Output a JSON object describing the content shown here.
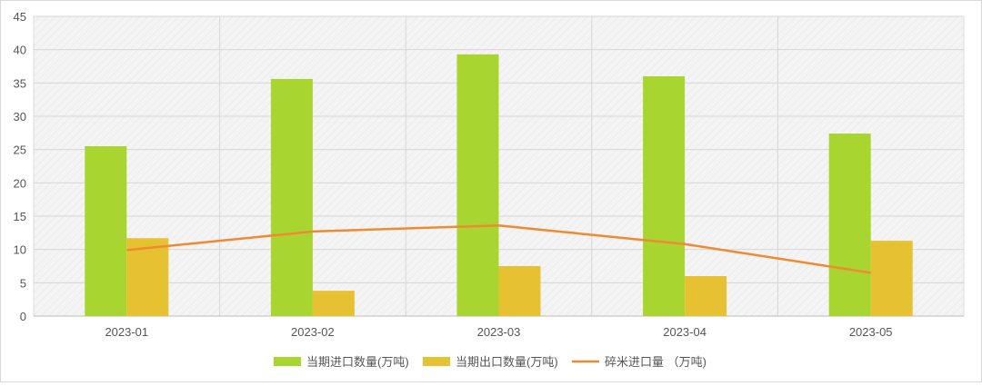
{
  "chart_data": {
    "type": "bar",
    "categories": [
      "2023-01",
      "2023-02",
      "2023-03",
      "2023-04",
      "2023-05"
    ],
    "series": [
      {
        "name": "当期进口数量(万吨)",
        "type": "bar",
        "color": "#a8d52f",
        "values": [
          25.5,
          35.6,
          39.3,
          36.0,
          27.4
        ]
      },
      {
        "name": "当期出口数量(万吨)",
        "type": "bar",
        "color": "#e6c232",
        "values": [
          11.7,
          3.8,
          7.5,
          6.0,
          11.3
        ]
      },
      {
        "name": "碎米进口量 （万吨)",
        "type": "line",
        "color": "#f08a30",
        "values": [
          9.9,
          12.7,
          13.6,
          10.8,
          6.5
        ]
      }
    ],
    "yticks": [
      0,
      5,
      10,
      15,
      20,
      25,
      30,
      35,
      40,
      45
    ],
    "ylim": [
      0,
      45
    ],
    "grid": true,
    "legend": "bottom-center"
  }
}
